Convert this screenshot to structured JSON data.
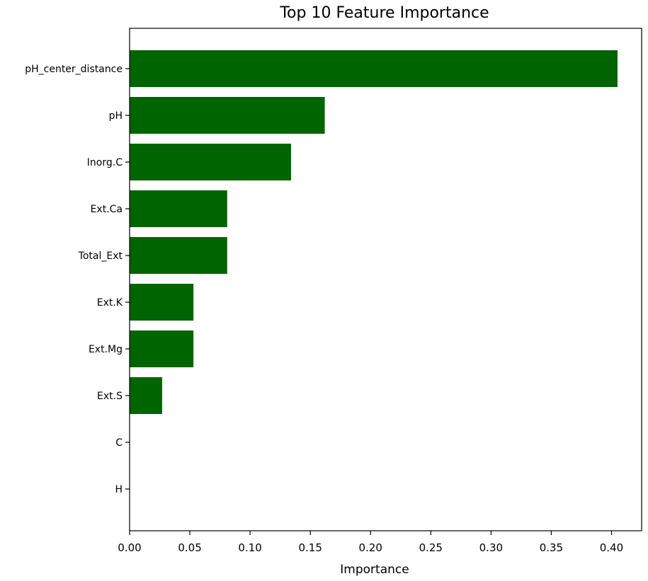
{
  "chart_data": {
    "type": "bar",
    "orientation": "horizontal",
    "title": "Top 10 Feature Importance",
    "xlabel": "Importance",
    "ylabel": "",
    "categories": [
      "pH_center_distance",
      "pH",
      "Inorg.C",
      "Ext.Ca",
      "Total_Ext",
      "Ext.K",
      "Ext.Mg",
      "Ext.S",
      "C",
      "H"
    ],
    "values": [
      0.405,
      0.162,
      0.134,
      0.081,
      0.081,
      0.053,
      0.053,
      0.027,
      0.0,
      0.0
    ],
    "xlim": [
      0.0,
      0.425
    ],
    "xticks": [
      "0.00",
      "0.05",
      "0.10",
      "0.15",
      "0.20",
      "0.25",
      "0.30",
      "0.35",
      "0.40"
    ],
    "grid": false,
    "colors": {
      "bar": "#006400"
    }
  }
}
